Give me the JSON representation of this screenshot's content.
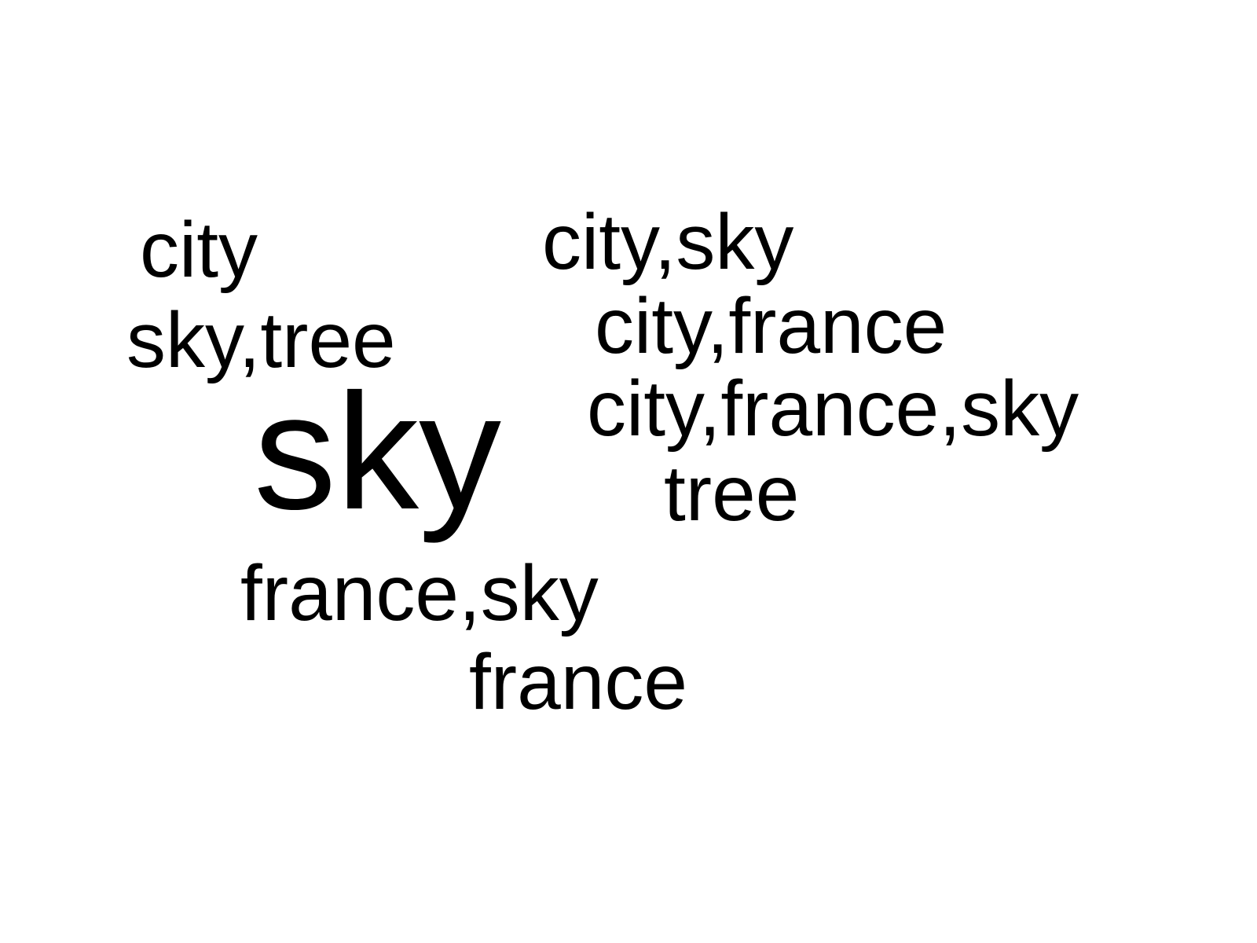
{
  "word_cloud": {
    "words": [
      {
        "id": "city",
        "text": "city"
      },
      {
        "id": "city_sky",
        "text": "city,sky"
      },
      {
        "id": "city_france",
        "text": "city,france"
      },
      {
        "id": "sky_tree",
        "text": "sky,tree"
      },
      {
        "id": "city_france_sky",
        "text": "city,france,sky"
      },
      {
        "id": "sky",
        "text": "sky"
      },
      {
        "id": "tree",
        "text": "tree"
      },
      {
        "id": "france_sky",
        "text": "france,sky"
      },
      {
        "id": "france",
        "text": "france"
      }
    ],
    "text_color": "#000000",
    "background_color": "#ffffff"
  }
}
